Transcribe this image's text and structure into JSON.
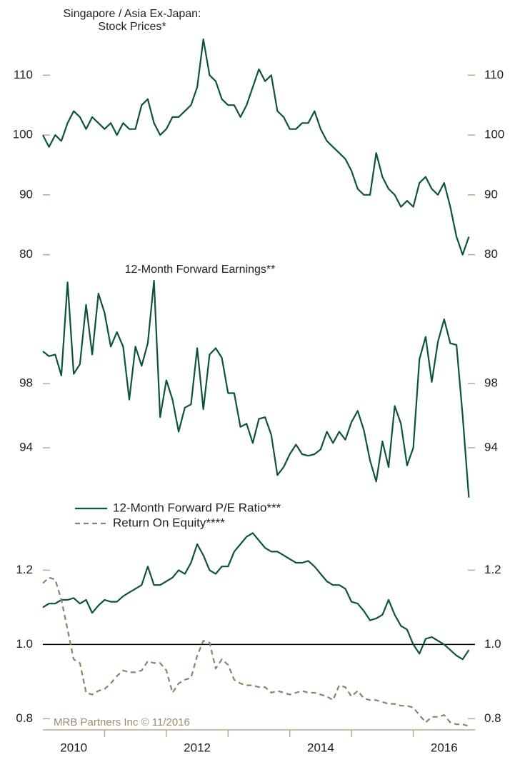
{
  "chart_data": [
    {
      "type": "line",
      "title": [
        "Singapore / Asia Ex-Japan:",
        "Stock Prices*"
      ],
      "color": "#0d5536",
      "x": [
        2010,
        2010.1,
        2010.2,
        2010.3,
        2010.4,
        2010.5,
        2010.6,
        2010.7,
        2010.8,
        2010.9,
        2011,
        2011.1,
        2011.2,
        2011.3,
        2011.4,
        2011.5,
        2011.6,
        2011.7,
        2011.8,
        2011.9,
        2012,
        2012.1,
        2012.2,
        2012.3,
        2012.4,
        2012.5,
        2012.6,
        2012.7,
        2012.8,
        2012.9,
        2013,
        2013.1,
        2013.2,
        2013.3,
        2013.4,
        2013.5,
        2013.6,
        2013.7,
        2013.8,
        2013.9,
        2014,
        2014.1,
        2014.2,
        2014.3,
        2014.4,
        2014.5,
        2014.6,
        2014.7,
        2014.8,
        2014.9,
        2015,
        2015.1,
        2015.2,
        2015.3,
        2015.4,
        2015.5,
        2015.6,
        2015.7,
        2015.8,
        2015.9,
        2016,
        2016.1,
        2016.2,
        2016.3,
        2016.4,
        2016.5,
        2016.6,
        2016.7,
        2016.8,
        2016.9
      ],
      "values": [
        100,
        98,
        100,
        99,
        102,
        104,
        103,
        101,
        103,
        102,
        101,
        102,
        100,
        102,
        101,
        101,
        105,
        106,
        102,
        100,
        101,
        103,
        103,
        104,
        105,
        108,
        116,
        110,
        109,
        106,
        105,
        105,
        103,
        105,
        108,
        111,
        109,
        110,
        104,
        103,
        101,
        101,
        102,
        102,
        104,
        101,
        99,
        98,
        97,
        96,
        94,
        91,
        90,
        90,
        97,
        93,
        91,
        90,
        88,
        89,
        88,
        92,
        93,
        91,
        90,
        92,
        88,
        83,
        80,
        83
      ],
      "xlim": [
        2010,
        2017
      ],
      "ylim": [
        79,
        116.6
      ],
      "yticks": [
        80,
        90,
        100,
        110
      ]
    },
    {
      "type": "line",
      "title": [
        "12-Month Forward Earnings**"
      ],
      "color": "#0d5536",
      "x": [
        2010,
        2010.1,
        2010.2,
        2010.3,
        2010.4,
        2010.5,
        2010.6,
        2010.7,
        2010.8,
        2010.9,
        2011,
        2011.1,
        2011.2,
        2011.3,
        2011.4,
        2011.5,
        2011.6,
        2011.7,
        2011.8,
        2011.9,
        2012,
        2012.1,
        2012.2,
        2012.3,
        2012.4,
        2012.5,
        2012.6,
        2012.7,
        2012.8,
        2012.9,
        2013,
        2013.1,
        2013.2,
        2013.3,
        2013.4,
        2013.5,
        2013.6,
        2013.7,
        2013.8,
        2013.9,
        2014,
        2014.1,
        2014.2,
        2014.3,
        2014.4,
        2014.5,
        2014.6,
        2014.7,
        2014.8,
        2014.9,
        2015,
        2015.1,
        2015.2,
        2015.3,
        2015.4,
        2015.5,
        2015.6,
        2015.7,
        2015.8,
        2015.9,
        2016,
        2016.1,
        2016.2,
        2016.3,
        2016.4,
        2016.5,
        2016.6,
        2016.7,
        2016.8,
        2016.9
      ],
      "values": [
        100.0,
        99.7,
        99.8,
        98.5,
        104.3,
        98.6,
        99.2,
        102.9,
        99.8,
        103.6,
        102.4,
        100.3,
        101.2,
        100.3,
        97.0,
        100.3,
        99.1,
        100.5,
        104.4,
        95.9,
        98.2,
        97.0,
        95.0,
        96.5,
        96.7,
        100.2,
        96.4,
        99.8,
        100.2,
        99.6,
        97.4,
        97.4,
        95.3,
        95.5,
        94.3,
        95.8,
        95.9,
        94.8,
        92.3,
        92.8,
        93.6,
        94.2,
        93.6,
        93.5,
        93.6,
        93.9,
        95.0,
        94.3,
        95.0,
        94.5,
        95.6,
        96.3,
        95.1,
        93.2,
        91.9,
        94.4,
        92.8,
        96.6,
        95.5,
        92.9,
        94.0,
        99.5,
        100.9,
        98.1,
        100.6,
        102.0,
        100.5,
        100.4,
        96.0,
        90.9
      ],
      "xlim": [
        2010,
        2017
      ],
      "ylim": [
        90.8,
        104.8
      ],
      "yticks": [
        94,
        98
      ]
    },
    {
      "type": "line",
      "legend": "upper left",
      "hline": 1,
      "annotation": "MRB Partners Inc © 11/2016",
      "x": [
        2010,
        2010.1,
        2010.2,
        2010.3,
        2010.4,
        2010.5,
        2010.6,
        2010.7,
        2010.8,
        2010.9,
        2011,
        2011.1,
        2011.2,
        2011.3,
        2011.4,
        2011.5,
        2011.6,
        2011.7,
        2011.8,
        2011.9,
        2012,
        2012.1,
        2012.2,
        2012.3,
        2012.4,
        2012.5,
        2012.6,
        2012.7,
        2012.8,
        2012.9,
        2013,
        2013.1,
        2013.2,
        2013.3,
        2013.4,
        2013.5,
        2013.6,
        2013.7,
        2013.8,
        2013.9,
        2014,
        2014.1,
        2014.2,
        2014.3,
        2014.4,
        2014.5,
        2014.6,
        2014.7,
        2014.8,
        2014.9,
        2015,
        2015.1,
        2015.2,
        2015.3,
        2015.4,
        2015.5,
        2015.6,
        2015.7,
        2015.8,
        2015.9,
        2016,
        2016.1,
        2016.2,
        2016.3,
        2016.4,
        2016.5,
        2016.6,
        2016.7,
        2016.8,
        2016.9
      ],
      "series": [
        {
          "name": "12-Month Forward P/E Ratio***",
          "color": "#0d5536",
          "dashed": false,
          "values": [
            1.1,
            1.11,
            1.11,
            1.12,
            1.12,
            1.125,
            1.11,
            1.12,
            1.085,
            1.105,
            1.12,
            1.115,
            1.115,
            1.13,
            1.14,
            1.15,
            1.16,
            1.21,
            1.16,
            1.16,
            1.17,
            1.18,
            1.2,
            1.19,
            1.22,
            1.27,
            1.24,
            1.2,
            1.19,
            1.21,
            1.21,
            1.25,
            1.27,
            1.29,
            1.3,
            1.28,
            1.26,
            1.25,
            1.25,
            1.24,
            1.23,
            1.22,
            1.22,
            1.225,
            1.21,
            1.19,
            1.17,
            1.16,
            1.16,
            1.15,
            1.115,
            1.11,
            1.09,
            1.065,
            1.07,
            1.08,
            1.12,
            1.08,
            1.05,
            1.04,
            1.0,
            0.975,
            1.015,
            1.02,
            1.01,
            1.0,
            0.985,
            0.97,
            0.96,
            0.985
          ]
        },
        {
          "name": "Return On Equity****",
          "color": "#8f8266",
          "dashed": true,
          "values": [
            1.165,
            1.18,
            1.175,
            1.12,
            1.04,
            0.96,
            0.95,
            0.87,
            0.865,
            0.875,
            0.88,
            0.895,
            0.915,
            0.93,
            0.925,
            0.925,
            0.93,
            0.955,
            0.95,
            0.95,
            0.93,
            0.87,
            0.895,
            0.905,
            0.91,
            0.97,
            1.01,
            1.005,
            0.935,
            0.96,
            0.945,
            0.905,
            0.895,
            0.89,
            0.89,
            0.885,
            0.885,
            0.87,
            0.875,
            0.87,
            0.865,
            0.87,
            0.875,
            0.87,
            0.87,
            0.865,
            0.86,
            0.85,
            0.89,
            0.885,
            0.86,
            0.875,
            0.855,
            0.85,
            0.85,
            0.845,
            0.84,
            0.84,
            0.835,
            0.835,
            0.83,
            0.81,
            0.79,
            0.805,
            0.805,
            0.81,
            0.79,
            0.785,
            0.785,
            0.78
          ]
        }
      ],
      "xlim": [
        2010,
        2017
      ],
      "ylim": [
        0.77,
        1.32
      ],
      "yticks": [
        {
          "value": 0.8,
          "label": "0.8"
        },
        {
          "value": 1,
          "label": "1.0"
        },
        {
          "value": 1.2,
          "label": "1.2"
        }
      ],
      "xticks": [
        {
          "value": 2010.5,
          "label": "2010"
        },
        {
          "value": 2012.5,
          "label": "2012"
        },
        {
          "value": 2014.5,
          "label": "2014"
        },
        {
          "value": 2016.5,
          "label": "2016"
        }
      ],
      "xminor": [
        2011,
        2012,
        2013,
        2014,
        2015,
        2016
      ]
    }
  ]
}
